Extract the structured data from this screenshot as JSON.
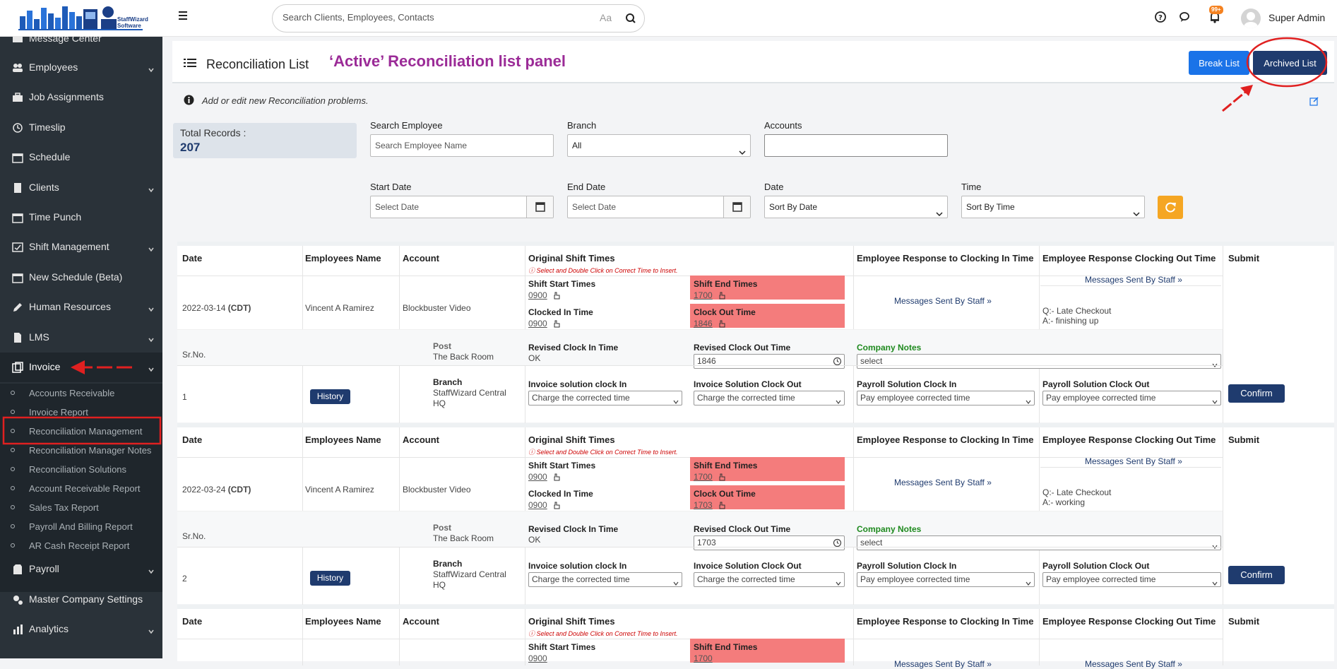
{
  "brand": {
    "logo_text": "StaffWizard Software"
  },
  "search": {
    "placeholder": "Search Clients, Employees, Contacts",
    "case_glyph": "Aa"
  },
  "topbar": {
    "notification_badge": "99+",
    "user_name": "Super Admin"
  },
  "sidebar": {
    "items": [
      {
        "label": "Message Center",
        "icon": "message-icon"
      },
      {
        "label": "Employees",
        "icon": "users-icon"
      },
      {
        "label": "Job Assignments",
        "icon": "briefcase-icon"
      },
      {
        "label": "Timeslip",
        "icon": "clock-icon"
      },
      {
        "label": "Schedule",
        "icon": "calendar-icon"
      },
      {
        "label": "Clients",
        "icon": "building-icon"
      },
      {
        "label": "Time Punch",
        "icon": "calendar-icon"
      },
      {
        "label": "Shift Management",
        "icon": "shift-icon"
      },
      {
        "label": "New Schedule (Beta)",
        "icon": "calendar-icon"
      },
      {
        "label": "Human Resources",
        "icon": "pencil-icon"
      },
      {
        "label": "LMS",
        "icon": "file-icon"
      },
      {
        "label": "Invoice",
        "icon": "invoice-icon"
      },
      {
        "label": "Payroll",
        "icon": "payroll-icon"
      },
      {
        "label": "Master Company Settings",
        "icon": "gears-icon"
      },
      {
        "label": "Analytics",
        "icon": "chart-icon"
      }
    ],
    "invoice_sub": [
      "Accounts Receivable",
      "Invoice Report",
      "Reconciliation Management",
      "Reconciliation Manager Notes",
      "Reconciliation Solutions",
      "Account Receivable Report",
      "Sales Tax Report",
      "Payroll And Billing Report",
      "AR Cash Receipt Report"
    ]
  },
  "header": {
    "title": "Reconciliation List",
    "annotation": "‘Active’ Reconciliation list panel",
    "break_list": "Break List",
    "archived_list": "Archived List"
  },
  "info": "Add or edit new Reconciliation problems.",
  "totals": {
    "label": "Total Records :",
    "value": "207"
  },
  "filters": {
    "search_employee_label": "Search Employee",
    "search_employee_placeholder": "Search Employee Name",
    "branch_label": "Branch",
    "branch_value": "All",
    "accounts_label": "Accounts",
    "start_date_label": "Start Date",
    "end_date_label": "End Date",
    "date_placeholder": "Select Date",
    "date_label": "Date",
    "date_value": "Sort By Date",
    "time_label": "Time",
    "time_value": "Sort By Time"
  },
  "columns": {
    "date": "Date",
    "employee": "Employees Name",
    "account": "Account",
    "original": "Original Shift Times",
    "hint": "Select and Double Click on Correct Time to Insert.",
    "resp_in": "Employee Response to Clocking In Time",
    "resp_out": "Employee Response Clocking Out Time",
    "submit": "Submit"
  },
  "labels": {
    "shift_start": "Shift Start Times",
    "shift_end": "Shift End Times",
    "clocked_in": "Clocked In Time",
    "clock_out": "Clock Out Time",
    "sr_no": "Sr.No.",
    "post": "Post",
    "branch": "Branch",
    "revised_in": "Revised Clock In Time",
    "revised_out": "Revised Clock Out Time",
    "company_notes": "Company Notes",
    "notes_select": "select",
    "inv_in": "Invoice solution clock In",
    "inv_out": "Invoice Solution Clock Out",
    "pay_in": "Payroll Solution Clock In",
    "pay_out": "Payroll Solution Clock Out",
    "inv_opt": "Charge the corrected time",
    "pay_opt": "Pay employee corrected time",
    "messages": "Messages Sent By Staff",
    "history": "History",
    "confirm": "Confirm",
    "ok": "OK"
  },
  "records": [
    {
      "date": "2022-03-14",
      "tz": "(CDT)",
      "employee": "Vincent A Ramirez",
      "account": "Blockbuster Video",
      "shift_start": "0900",
      "shift_end": "1700",
      "clocked_in": "0900",
      "clock_out": "1846",
      "post": "The Back Room",
      "branch": "StaffWizard Central HQ",
      "revised_out": "1846",
      "q": "Q:- Late Checkout",
      "a": "A:- finishing up",
      "sr": "1"
    },
    {
      "date": "2022-03-24",
      "tz": "(CDT)",
      "employee": "Vincent A Ramirez",
      "account": "Blockbuster Video",
      "shift_start": "0900",
      "shift_end": "1700",
      "clocked_in": "0900",
      "clock_out": "1703",
      "post": "The Back Room",
      "branch": "StaffWizard Central HQ",
      "revised_out": "1703",
      "q": "Q:- Late Checkout",
      "a": "A:- working",
      "sr": "2"
    }
  ],
  "partial_record": {
    "shift_start": "Shift Start Times",
    "shift_end": "Shift End Times",
    "start_val": "0900",
    "end_val": "1700"
  },
  "colors": {
    "accent": "#1f3b6e",
    "sidebar": "#2a3239",
    "annotation": "#9b2b97",
    "alert": "#f47c7c",
    "primary": "#1a73e8",
    "orange": "#f5a623"
  }
}
